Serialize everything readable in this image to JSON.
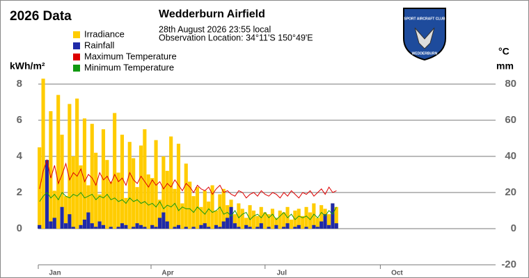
{
  "chart_data": {
    "type": "bar",
    "title": "2026 Data",
    "subtitle": "Wedderburn Airfield",
    "timestamp": "28th August 2026  23:55 local",
    "location": "Observation Location: 34°11'S 150°49'E",
    "ylabel": "kWh/m²",
    "y2label": "°C",
    "y2label2": "mm",
    "logo": {
      "top": "SPORT AIRCRAFT CLUB",
      "bottom": "WEDDERBURN"
    },
    "x": [
      1,
      4,
      7,
      10,
      13,
      16,
      19,
      22,
      25,
      28,
      31,
      34,
      37,
      40,
      43,
      46,
      49,
      52,
      55,
      58,
      61,
      64,
      67,
      70,
      73,
      76,
      79,
      82,
      85,
      88,
      91,
      94,
      97,
      100,
      103,
      106,
      109,
      112,
      115,
      118,
      121,
      124,
      127,
      130,
      133,
      136,
      139,
      142,
      145,
      148,
      151,
      154,
      157,
      160,
      163,
      166,
      169,
      172,
      175,
      178,
      181,
      184,
      187,
      190,
      193,
      196,
      199,
      202,
      205,
      208,
      211,
      214,
      217,
      220,
      223,
      226,
      229,
      232,
      235,
      238
    ],
    "xlim": [
      0,
      365
    ],
    "xticks": [
      {
        "value": 0,
        "label": "Jan"
      },
      {
        "value": 90,
        "label": "Apr"
      },
      {
        "value": 181,
        "label": "Jul"
      },
      {
        "value": 273,
        "label": "Oct"
      }
    ],
    "ylim": [
      -2,
      8
    ],
    "yticks": [
      0,
      2,
      4,
      6,
      8
    ],
    "y2lim": [
      -20,
      80
    ],
    "y2ticks": [
      -20,
      0,
      20,
      40,
      60,
      80
    ],
    "grid": true,
    "series": [
      {
        "name": "Irradiance",
        "color": "#ffcc00",
        "kind": "bar",
        "axis": "y",
        "values": [
          4.5,
          8.3,
          3.2,
          6.5,
          2.1,
          7.4,
          5.2,
          1.8,
          6.9,
          4.0,
          7.2,
          3.5,
          6.1,
          2.4,
          5.8,
          4.2,
          1.9,
          5.5,
          3.8,
          2.6,
          6.4,
          3.1,
          5.2,
          1.7,
          4.8,
          3.9,
          2.3,
          4.6,
          5.5,
          3.0,
          2.8,
          4.9,
          1.6,
          4.0,
          3.2,
          5.1,
          2.2,
          4.7,
          1.4,
          3.6,
          2.6,
          1.8,
          2.3,
          1.2,
          2.1,
          1.5,
          2.4,
          1.0,
          1.9,
          2.2,
          1.3,
          1.6,
          0.8,
          1.4,
          1.1,
          0.6,
          1.3,
          1.0,
          0.7,
          1.2,
          0.9,
          0.8,
          1.1,
          0.6,
          1.0,
          0.9,
          1.2,
          0.5,
          1.0,
          1.1,
          0.7,
          1.2,
          0.9,
          1.4,
          0.6,
          1.3,
          1.1,
          0.8,
          1.4,
          1.2
        ]
      },
      {
        "name": "Rainfall",
        "color": "#1f2aa8",
        "kind": "bar",
        "axis": "y2",
        "values": [
          2,
          0,
          38,
          4,
          6,
          0,
          12,
          3,
          8,
          1,
          0,
          2,
          5,
          9,
          3,
          1,
          4,
          2,
          0,
          1,
          0,
          1,
          3,
          2,
          0,
          1,
          3,
          2,
          1,
          0,
          2,
          1,
          6,
          9,
          4,
          0,
          1,
          2,
          0,
          1,
          0,
          1,
          0,
          2,
          3,
          1,
          0,
          2,
          1,
          4,
          6,
          12,
          3,
          1,
          0,
          2,
          1,
          0,
          1,
          3,
          0,
          1,
          0,
          2,
          0,
          1,
          3,
          0,
          1,
          2,
          0,
          1,
          0,
          2,
          1,
          4,
          8,
          2,
          14,
          3
        ]
      },
      {
        "name": "Maximum Temperature",
        "color": "#dd0000",
        "kind": "line",
        "axis": "y2",
        "values": [
          22,
          32,
          38,
          28,
          35,
          25,
          30,
          36,
          27,
          31,
          29,
          33,
          26,
          30,
          28,
          24,
          31,
          27,
          29,
          25,
          30,
          26,
          28,
          24,
          31,
          27,
          25,
          29,
          26,
          23,
          27,
          24,
          26,
          22,
          25,
          23,
          27,
          24,
          21,
          25,
          23,
          20,
          24,
          22,
          21,
          23,
          19,
          22,
          24,
          20,
          21,
          19,
          18,
          21,
          20,
          17,
          19,
          20,
          18,
          21,
          19,
          18,
          20,
          19,
          17,
          20,
          18,
          21,
          19,
          17,
          20,
          19,
          21,
          18,
          20,
          22,
          19,
          23,
          20,
          21
        ]
      },
      {
        "name": "Minimum Temperature",
        "color": "#119911",
        "kind": "line",
        "axis": "y2",
        "values": [
          15,
          18,
          20,
          17,
          19,
          16,
          20,
          18,
          17,
          19,
          18,
          20,
          17,
          18,
          19,
          16,
          18,
          17,
          19,
          16,
          17,
          15,
          16,
          14,
          17,
          15,
          16,
          14,
          15,
          13,
          14,
          12,
          15,
          11,
          13,
          12,
          14,
          10,
          12,
          11,
          11,
          9,
          12,
          10,
          8,
          11,
          9,
          10,
          12,
          8,
          9,
          7,
          10,
          6,
          8,
          9,
          5,
          7,
          8,
          6,
          9,
          6,
          8,
          5,
          7,
          9,
          6,
          8,
          5,
          7,
          6,
          7,
          5,
          8,
          6,
          9,
          7,
          10,
          8,
          12
        ]
      }
    ]
  }
}
